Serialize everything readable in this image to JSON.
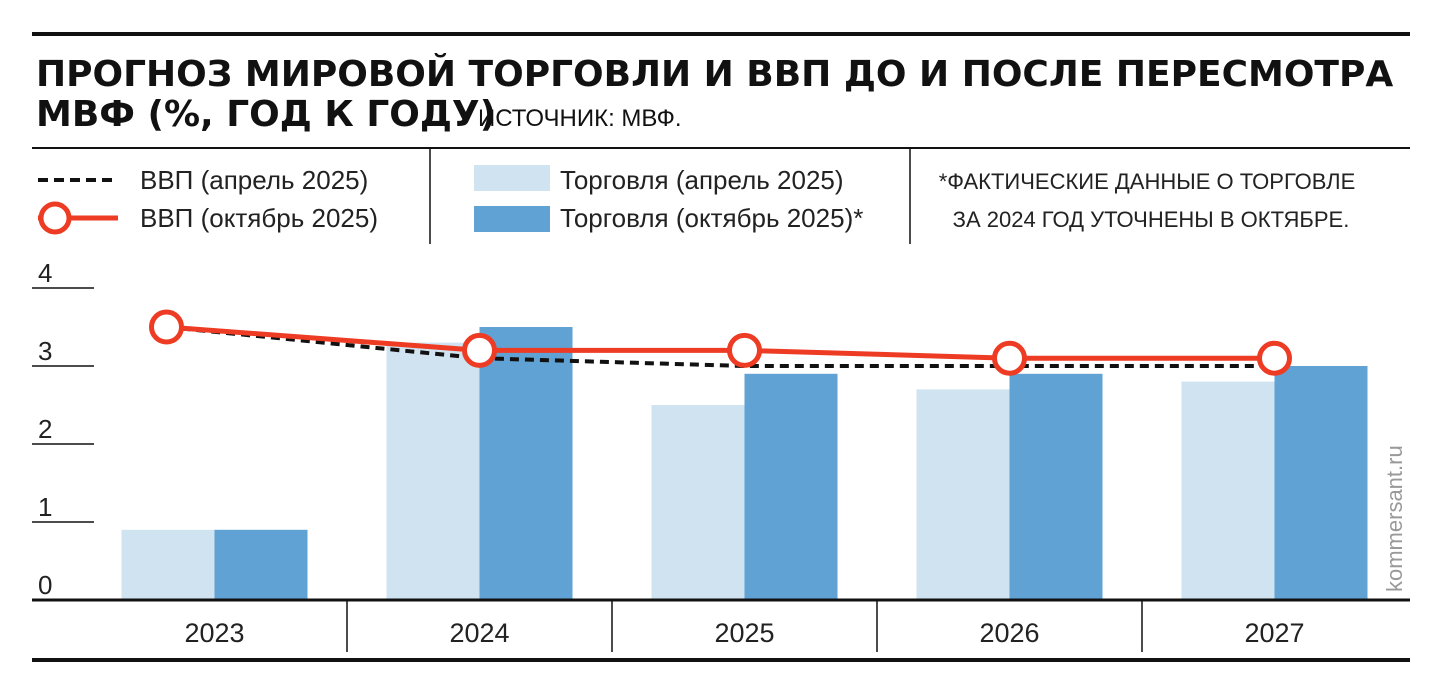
{
  "header": {
    "title_line1": "ПРОГНОЗ МИРОВОЙ ТОРГОВЛИ И ВВП ДО И ПОСЛЕ ПЕРЕСМОТРА",
    "title_line2": "МВФ (%, ГОД К ГОДУ)",
    "source": "ИСТОЧНИК: МВФ."
  },
  "legend": {
    "gdp_april": "ВВП (апрель 2025)",
    "gdp_october": "ВВП (октябрь 2025)",
    "trade_april": "Торговля (апрель 2025)",
    "trade_october": "Торговля (октябрь 2025)*"
  },
  "note": {
    "line1": "*ФАКТИЧЕСКИЕ ДАННЫЕ О ТОРГОВЛЕ",
    "line2": "ЗА 2024 ГОД УТОЧНЕНЫ В ОКТЯБРЕ."
  },
  "credit": "kommersant.ru",
  "colors": {
    "trade_april": "#d0e3f1",
    "trade_october": "#5fa2d3",
    "gdp_october": "#ee3b23",
    "gdp_april": "#111111"
  },
  "chart_data": {
    "type": "bar",
    "categories": [
      "2023",
      "2024",
      "2025",
      "2026",
      "2027"
    ],
    "ylim": [
      0,
      4
    ],
    "yticks": [
      "0",
      "1",
      "2",
      "3",
      "4"
    ],
    "series": [
      {
        "name": "Торговля (апрель 2025)",
        "type": "bar",
        "values": [
          0.9,
          3.3,
          2.5,
          2.7,
          2.8
        ]
      },
      {
        "name": "Торговля (октябрь 2025)*",
        "type": "bar",
        "values": [
          0.9,
          3.5,
          2.9,
          2.9,
          3.0
        ]
      },
      {
        "name": "ВВП (апрель 2025)",
        "type": "line",
        "style": "dashed",
        "values": [
          3.5,
          3.1,
          3.0,
          3.0,
          3.0
        ]
      },
      {
        "name": "ВВП (октябрь 2025)",
        "type": "line",
        "style": "solid-markers",
        "values": [
          3.5,
          3.2,
          3.2,
          3.1,
          3.1
        ]
      }
    ]
  }
}
